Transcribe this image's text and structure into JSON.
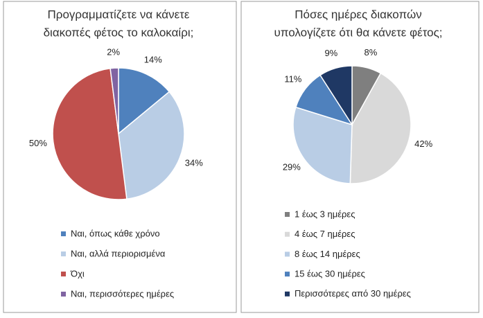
{
  "chart_data": [
    {
      "type": "pie",
      "title": [
        "Προγραμματίζετε να κάνετε",
        "διακοπές φέτος το καλοκαίρι;"
      ],
      "categories": [
        "Ναι, όπως κάθε χρόνο",
        "Ναι, αλλά περιορισμένα",
        "Όχι",
        "Ναι, περισσότερες ημέρες"
      ],
      "values": [
        14,
        34,
        50,
        2
      ],
      "value_labels": [
        "14%",
        "34%",
        "50%",
        "2%"
      ],
      "colors": [
        "#4f81bd",
        "#b9cde5",
        "#c0504d",
        "#8064a2"
      ]
    },
    {
      "type": "pie",
      "title": [
        "Πόσες ημέρες διακοπών",
        "υπολογίζετε ότι θα κάνετε φέτος;"
      ],
      "categories": [
        "1 έως 3 ημέρες",
        "4 έως 7 ημέρες",
        "8 έως 14 ημέρες",
        "15 έως 30 ημέρες",
        "Περισσότερες από 30 ημέρες"
      ],
      "values": [
        8,
        42,
        29,
        11,
        9
      ],
      "value_labels": [
        "8%",
        "42%",
        "29%",
        "11%",
        "9%"
      ],
      "colors": [
        "#7f7f7f",
        "#d9d9d9",
        "#b9cde5",
        "#4f81bd",
        "#1f3864"
      ]
    }
  ]
}
